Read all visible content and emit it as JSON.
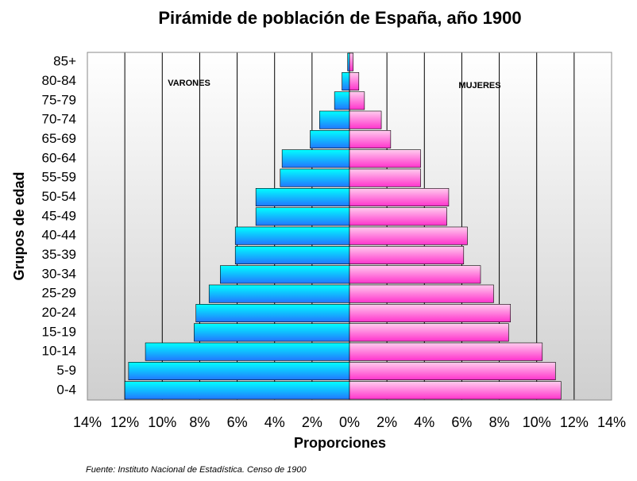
{
  "chart_data": {
    "type": "pyramid",
    "title": "Pirámide de población de España, año 1900",
    "x_label": "Proporciones",
    "y_label": "Grupos de edad",
    "source": "Fuente: Instituto Nacional de Estadística. Censo de 1900",
    "categories": [
      "0-4",
      "5-9",
      "10-14",
      "15-19",
      "20-24",
      "25-29",
      "30-34",
      "35-39",
      "40-44",
      "45-49",
      "50-54",
      "55-59",
      "60-64",
      "65-69",
      "70-74",
      "75-79",
      "80-84",
      "85+"
    ],
    "series": [
      {
        "name": "VARONES",
        "color": "#22aaff",
        "values": [
          -12.0,
          -11.8,
          -10.9,
          -8.3,
          -8.2,
          -7.5,
          -6.9,
          -6.1,
          -6.1,
          -5.0,
          -5.0,
          -3.7,
          -3.6,
          -2.1,
          -1.6,
          -0.8,
          -0.4,
          -0.1
        ]
      },
      {
        "name": "MUJERES",
        "color": "#ff66cc",
        "values": [
          11.3,
          11.0,
          10.3,
          8.5,
          8.6,
          7.7,
          7.0,
          6.1,
          6.3,
          5.2,
          5.3,
          3.8,
          3.8,
          2.2,
          1.7,
          0.8,
          0.5,
          0.2
        ]
      }
    ],
    "xlim": [
      -14,
      14
    ],
    "xticks": [
      {
        "value": -14,
        "label": "14%"
      },
      {
        "value": -12,
        "label": "12%"
      },
      {
        "value": -10,
        "label": "10%"
      },
      {
        "value": -8,
        "label": "8%"
      },
      {
        "value": -6,
        "label": "6%"
      },
      {
        "value": -4,
        "label": "4%"
      },
      {
        "value": -2,
        "label": "2%"
      },
      {
        "value": 0,
        "label": "0%"
      },
      {
        "value": 2,
        "label": "2%"
      },
      {
        "value": 4,
        "label": "4%"
      },
      {
        "value": 6,
        "label": "6%"
      },
      {
        "value": 8,
        "label": "8%"
      },
      {
        "value": 10,
        "label": "10%"
      },
      {
        "value": 12,
        "label": "12%"
      },
      {
        "value": 14,
        "label": "14%"
      }
    ],
    "grid": true
  }
}
